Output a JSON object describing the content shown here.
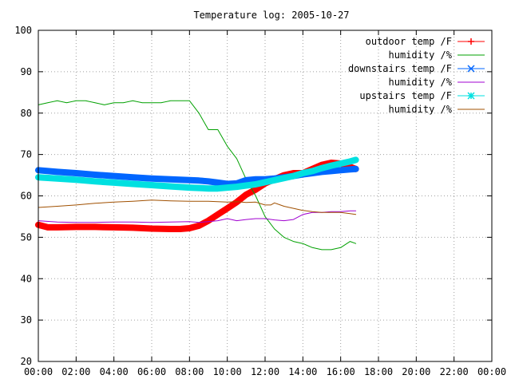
{
  "chart_data": {
    "type": "line",
    "title": "Temperature log: 2005-10-27",
    "xlabel": "",
    "ylabel": "",
    "xlim": [
      0,
      24
    ],
    "ylim": [
      20,
      100
    ],
    "grid": true,
    "legend_position": "top-right",
    "x_ticks": [
      "00:00",
      "02:00",
      "04:00",
      "06:00",
      "08:00",
      "10:00",
      "12:00",
      "14:00",
      "16:00",
      "18:00",
      "20:00",
      "22:00",
      "00:00"
    ],
    "y_ticks": [
      "20",
      "30",
      "40",
      "50",
      "60",
      "70",
      "80",
      "90",
      "100"
    ],
    "series": [
      {
        "name": "outdoor temp /F",
        "color": "#ff0000",
        "marker": "plus",
        "x": [
          0,
          0.5,
          1,
          2,
          3,
          4,
          5,
          6,
          7,
          7.5,
          8,
          8.5,
          9,
          9.5,
          10,
          10.5,
          11,
          11.5,
          12,
          12.5,
          13,
          13.5,
          14,
          14.5,
          15,
          15.5,
          16,
          16.5,
          16.8
        ],
        "y": [
          53,
          52.4,
          52.4,
          52.5,
          52.5,
          52.4,
          52.3,
          52.1,
          52,
          52,
          52.2,
          52.8,
          54,
          55.5,
          57,
          58.5,
          60.3,
          61.5,
          63,
          64,
          65,
          65.5,
          65.5,
          66.5,
          67.5,
          68,
          67.8,
          67,
          66.5
        ]
      },
      {
        "name": "humidity /%",
        "color": "#00a000",
        "marker": "none",
        "x": [
          0,
          0.5,
          1,
          1.5,
          2,
          2.5,
          3,
          3.5,
          4,
          4.5,
          5,
          5.5,
          6,
          6.5,
          7,
          7.5,
          8,
          8.5,
          9,
          9.5,
          10,
          10.5,
          11,
          11.5,
          12,
          12.5,
          13,
          13.5,
          14,
          14.5,
          15,
          15.5,
          16,
          16.5,
          16.8
        ],
        "y": [
          82,
          82.5,
          83,
          82.5,
          83,
          83,
          82.5,
          82,
          82.5,
          82.5,
          83,
          82.5,
          82.5,
          82.5,
          83,
          83,
          83,
          80,
          76,
          76,
          72,
          69,
          64,
          60,
          55,
          52,
          50,
          49,
          48.5,
          47.5,
          47,
          47,
          47.5,
          49,
          48.5
        ]
      },
      {
        "name": "downstairs temp /F",
        "color": "#0066ff",
        "marker": "x",
        "x": [
          0,
          1,
          2,
          3,
          4,
          5,
          6,
          7,
          8,
          8.5,
          9,
          9.5,
          10,
          10.5,
          11,
          11.5,
          12,
          12.5,
          13,
          13.5,
          14,
          14.5,
          15,
          15.5,
          16,
          16.5,
          16.8
        ],
        "y": [
          66.2,
          65.8,
          65.5,
          65.1,
          64.8,
          64.5,
          64.2,
          64,
          63.8,
          63.7,
          63.5,
          63.2,
          62.9,
          63,
          63.8,
          64,
          64,
          64.2,
          64.5,
          64.8,
          65.2,
          65.5,
          65.8,
          66,
          66.2,
          66.4,
          66.5
        ]
      },
      {
        "name": "humidity /%",
        "color": "#a000d0",
        "marker": "none",
        "x": [
          0,
          1,
          2,
          3,
          4,
          5,
          6,
          7,
          8,
          8.5,
          9,
          9.5,
          10,
          10.5,
          11,
          11.5,
          12,
          12.5,
          13,
          13.5,
          14,
          14.5,
          15,
          15.5,
          16,
          16.5,
          16.8
        ],
        "y": [
          54,
          53.7,
          53.6,
          53.6,
          53.7,
          53.7,
          53.6,
          53.7,
          53.8,
          53.6,
          53.8,
          54,
          54.5,
          54,
          54.3,
          54.5,
          54.5,
          54.2,
          54,
          54.3,
          55.5,
          56,
          56,
          56.2,
          56.2,
          56.4,
          56.4
        ]
      },
      {
        "name": "upstairs temp /F",
        "color": "#00e0e0",
        "marker": "star",
        "x": [
          0,
          1,
          2,
          3,
          4,
          5,
          6,
          7,
          8,
          8.5,
          9,
          9.5,
          10,
          10.5,
          11,
          11.5,
          12,
          12.5,
          13,
          13.5,
          14,
          14.5,
          15,
          15.5,
          16,
          16.5,
          16.8
        ],
        "y": [
          64.5,
          64.2,
          63.9,
          63.5,
          63.2,
          62.9,
          62.6,
          62.3,
          62,
          61.9,
          61.8,
          61.8,
          62,
          62.2,
          62.5,
          62.8,
          63.3,
          63.8,
          64.3,
          64.8,
          65.5,
          66,
          66.7,
          67.3,
          67.8,
          68.3,
          68.7
        ]
      },
      {
        "name": "humidity /%",
        "color": "#a05000",
        "marker": "none",
        "x": [
          0,
          1,
          2,
          3,
          4,
          5,
          6,
          7,
          8,
          8.5,
          9,
          9.5,
          10,
          10.5,
          11,
          11.5,
          12,
          12.3,
          12.5,
          13,
          13.5,
          14,
          14.5,
          15,
          15.5,
          16,
          16.5,
          16.8
        ],
        "y": [
          57.2,
          57.5,
          57.8,
          58.2,
          58.5,
          58.7,
          59,
          58.8,
          58.7,
          58.7,
          58.7,
          58.6,
          58.5,
          58.6,
          58.4,
          58.5,
          57.8,
          57.8,
          58.3,
          57.5,
          57,
          56.5,
          56.2,
          56,
          56,
          56,
          55.7,
          55.5
        ]
      }
    ]
  }
}
